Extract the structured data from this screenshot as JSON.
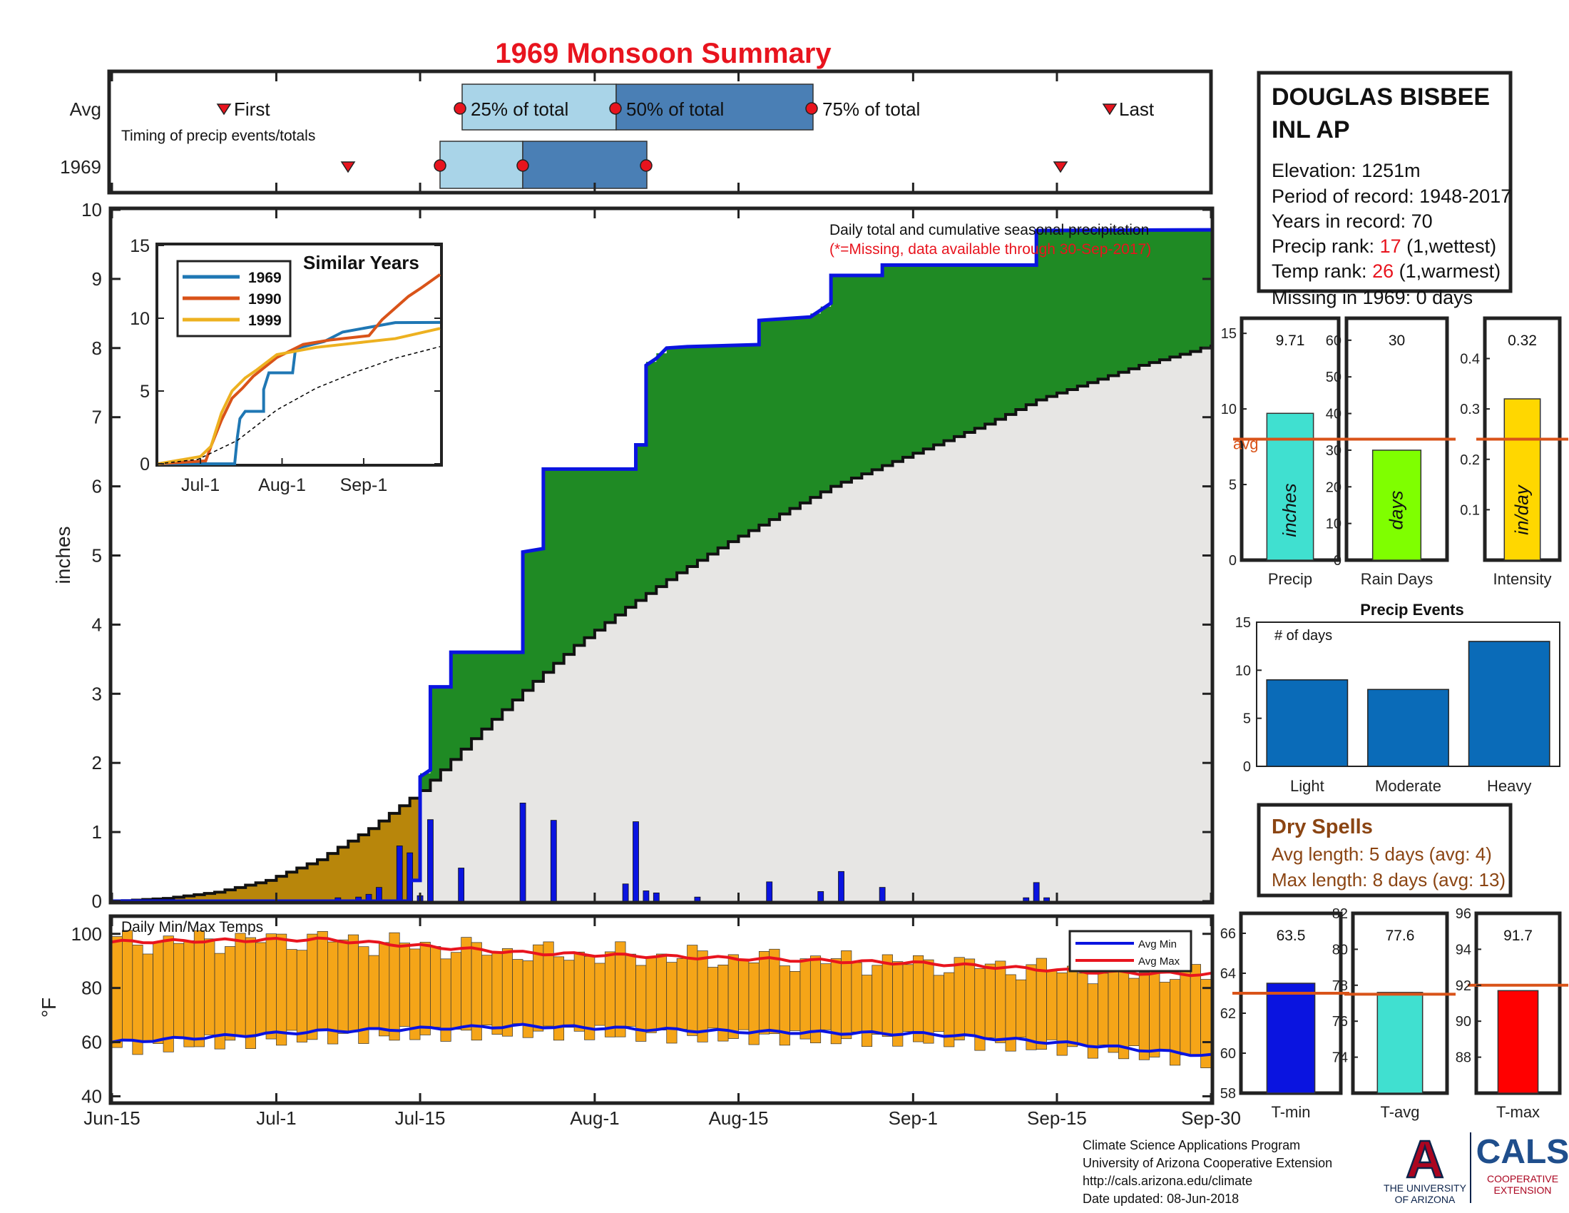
{
  "title": "1969 Monsoon Summary",
  "colors": {
    "title": "#e8141e",
    "cum_fill": "#1f8a24",
    "cum_line": "#0a14e0",
    "avg_fill": "#e7e6e4",
    "early_fill": "#b8860b",
    "daily_bar": "#0a14e0",
    "temp_bar": "#f5a518",
    "avg_max": "#e8141e",
    "avg_min": "#0a14e0",
    "box_light": "#a9d4e8",
    "box_dark": "#4a7fb5",
    "dry": "#8b4513"
  },
  "timing": {
    "row_avg": "Avg",
    "row_year": "1969",
    "caption": "Timing of precip events/totals",
    "first": "First",
    "last": "Last",
    "p25": "25% of total",
    "p50": "50% of total",
    "p75": "75% of total"
  },
  "station": {
    "name_line1": "DOUGLAS BISBEE",
    "name_line2": "INL AP",
    "elevation": "Elevation: 1251m",
    "period": "Period of record: 1948-2017",
    "years": "Years in record: 70",
    "precip_rank_label": "Precip rank: ",
    "precip_rank": "17",
    "precip_rank_note": " (1,wettest)",
    "temp_rank_label": "Temp rank: ",
    "temp_rank": "26",
    "temp_rank_note": " (1,warmest)",
    "missing": "Missing in 1969: 0 days"
  },
  "main_chart": {
    "note1": "Daily total and cumulative seasonal precipitation",
    "note2": "(*=Missing, data available through 30-Sep-2017)",
    "ylabel": "inches",
    "temp_title": "Daily Min/Max Temps",
    "temp_ylabel": "°F",
    "legend_min": "Avg Min",
    "legend_max": "Avg Max"
  },
  "inset": {
    "title": "Similar Years",
    "years": [
      "1969",
      "1990",
      "1999"
    ],
    "xticks": [
      "Jul-1",
      "Aug-1",
      "Sep-1"
    ],
    "yticks": [
      "0",
      "5",
      "10",
      "15"
    ]
  },
  "mini_bars": {
    "precip": {
      "value": "9.71",
      "unit": "inches",
      "label": "Precip",
      "avg_label": "avg"
    },
    "rain_days": {
      "value": "30",
      "unit": "days",
      "label": "Rain Days"
    },
    "intensity": {
      "value": "0.32",
      "unit": "in/day",
      "label": "Intensity"
    }
  },
  "events": {
    "title": "Precip Events",
    "ylabel": "# of days",
    "categories": [
      "Light",
      "Moderate",
      "Heavy"
    ],
    "values": [
      9,
      8,
      13
    ]
  },
  "dry_spells": {
    "title": "Dry Spells",
    "avg": "Avg length: 5 days (avg: 4)",
    "max": "Max length: 8 days (avg: 13)"
  },
  "temp_bars": {
    "tmin": {
      "value": "63.5",
      "label": "T-min"
    },
    "tavg": {
      "value": "77.6",
      "label": "T-avg"
    },
    "tmax": {
      "value": "91.7",
      "label": "T-max"
    }
  },
  "footer": {
    "line1": "Climate Science Applications Program",
    "line2": "University of Arizona Cooperative Extension",
    "line3": "http://cals.arizona.edu/climate",
    "line4": " Date updated: 08-Jun-2018",
    "ua1": "THE UNIVERSITY",
    "ua2": "OF ARIZONA",
    "cals": "CALS",
    "cals1": "COOPERATIVE",
    "cals2": "EXTENSION"
  },
  "chart_data": [
    {
      "type": "area",
      "name": "Daily total and cumulative seasonal precipitation",
      "xlabel": "",
      "ylabel": "inches",
      "xticks": [
        "Jun-15",
        "Jul-1",
        "Jul-15",
        "Aug-1",
        "Aug-15",
        "Sep-1",
        "Sep-15",
        "Sep-30"
      ],
      "xtick_days": [
        0,
        16,
        30,
        47,
        61,
        78,
        92,
        107
      ],
      "ylim": [
        0,
        10
      ],
      "yticks": [
        0,
        1,
        2,
        3,
        4,
        5,
        6,
        7,
        8,
        9,
        10
      ],
      "cumulative_1969": [
        [
          0,
          0
        ],
        [
          29,
          0
        ],
        [
          29,
          0.3
        ],
        [
          30,
          0.3
        ],
        [
          30,
          1.8
        ],
        [
          31,
          1.9
        ],
        [
          31,
          3.1
        ],
        [
          33,
          3.1
        ],
        [
          33,
          3.6
        ],
        [
          40,
          3.6
        ],
        [
          40,
          5.05
        ],
        [
          42,
          5.1
        ],
        [
          42,
          6.25
        ],
        [
          51,
          6.25
        ],
        [
          51,
          6.6
        ],
        [
          52,
          6.6
        ],
        [
          52,
          7.75
        ],
        [
          53,
          7.85
        ],
        [
          54,
          8.0
        ],
        [
          56,
          8.02
        ],
        [
          63,
          8.05
        ],
        [
          63,
          8.4
        ],
        [
          68,
          8.45
        ],
        [
          70,
          8.65
        ],
        [
          70,
          9.05
        ],
        [
          75,
          9.05
        ],
        [
          75,
          9.2
        ],
        [
          90,
          9.2
        ],
        [
          90,
          9.7
        ],
        [
          107,
          9.71
        ]
      ],
      "average_cumulative": [
        [
          0,
          0
        ],
        [
          5,
          0.04
        ],
        [
          10,
          0.13
        ],
        [
          15,
          0.3
        ],
        [
          20,
          0.6
        ],
        [
          25,
          1.05
        ],
        [
          30,
          1.6
        ],
        [
          35,
          2.35
        ],
        [
          40,
          3.05
        ],
        [
          45,
          3.7
        ],
        [
          50,
          4.25
        ],
        [
          55,
          4.75
        ],
        [
          60,
          5.2
        ],
        [
          65,
          5.6
        ],
        [
          70,
          6.0
        ],
        [
          75,
          6.3
        ],
        [
          80,
          6.6
        ],
        [
          85,
          6.9
        ],
        [
          90,
          7.25
        ],
        [
          95,
          7.5
        ],
        [
          100,
          7.75
        ],
        [
          105,
          7.95
        ],
        [
          107,
          8.05
        ]
      ],
      "daily_precip": [
        [
          22,
          0.05
        ],
        [
          24,
          0.06
        ],
        [
          25,
          0.1
        ],
        [
          26,
          0.2
        ],
        [
          28,
          0.8
        ],
        [
          29,
          0.7
        ],
        [
          30,
          0.08
        ],
        [
          31,
          1.18
        ],
        [
          34,
          0.48
        ],
        [
          40,
          1.42
        ],
        [
          43,
          1.17
        ],
        [
          50,
          0.25
        ],
        [
          51,
          1.15
        ],
        [
          52,
          0.15
        ],
        [
          53,
          0.12
        ],
        [
          57,
          0.06
        ],
        [
          64,
          0.28
        ],
        [
          69,
          0.14
        ],
        [
          71,
          0.43
        ],
        [
          75,
          0.2
        ],
        [
          89,
          0.05
        ],
        [
          90,
          0.27
        ],
        [
          91,
          0.05
        ]
      ]
    },
    {
      "type": "bar",
      "name": "Daily Min/Max Temps",
      "ylabel": "°F",
      "ylim": [
        38,
        106
      ],
      "yticks": [
        40,
        60,
        80,
        100
      ],
      "series": [
        {
          "name": "Avg Min"
        },
        {
          "name": "Avg Max"
        }
      ],
      "avg_max_points": [
        [
          0,
          97
        ],
        [
          20,
          98
        ],
        [
          40,
          93
        ],
        [
          60,
          91
        ],
        [
          80,
          89
        ],
        [
          95,
          86
        ],
        [
          107,
          85
        ]
      ],
      "avg_min_points": [
        [
          0,
          60
        ],
        [
          20,
          64
        ],
        [
          40,
          66
        ],
        [
          60,
          64
        ],
        [
          80,
          63
        ],
        [
          95,
          59
        ],
        [
          107,
          55
        ]
      ]
    },
    {
      "type": "line",
      "name": "Similar Years",
      "xlim": [
        0,
        107
      ],
      "ylim": [
        0,
        15
      ],
      "xticks": [
        "Jul-1",
        "Aug-1",
        "Sep-1"
      ],
      "yticks": [
        0,
        5,
        10,
        15
      ],
      "series": [
        {
          "name": "1969",
          "color": "#1f77b4",
          "points": [
            [
              0,
              0
            ],
            [
              29,
              0
            ],
            [
              30,
              1.8
            ],
            [
              31,
              3.1
            ],
            [
              33,
              3.6
            ],
            [
              40,
              3.6
            ],
            [
              40,
              5.1
            ],
            [
              42,
              6.25
            ],
            [
              51,
              6.25
            ],
            [
              52,
              7.75
            ],
            [
              54,
              8.0
            ],
            [
              63,
              8.4
            ],
            [
              70,
              9.05
            ],
            [
              90,
              9.7
            ],
            [
              107,
              9.71
            ]
          ]
        },
        {
          "name": "1990",
          "color": "#d95319",
          "points": [
            [
              0,
              0
            ],
            [
              18,
              0.2
            ],
            [
              20,
              1.2
            ],
            [
              24,
              3.0
            ],
            [
              28,
              4.5
            ],
            [
              32,
              5.2
            ],
            [
              36,
              6.0
            ],
            [
              45,
              7.3
            ],
            [
              55,
              8.2
            ],
            [
              65,
              8.5
            ],
            [
              80,
              8.8
            ],
            [
              85,
              9.9
            ],
            [
              95,
              11.5
            ],
            [
              100,
              12.1
            ],
            [
              107,
              13.0
            ]
          ]
        },
        {
          "name": "1999",
          "color": "#edb120",
          "points": [
            [
              0,
              0
            ],
            [
              16,
              0.5
            ],
            [
              20,
              1.2
            ],
            [
              24,
              3.5
            ],
            [
              28,
              5.0
            ],
            [
              33,
              5.9
            ],
            [
              37,
              6.4
            ],
            [
              45,
              7.5
            ],
            [
              60,
              8.0
            ],
            [
              75,
              8.3
            ],
            [
              90,
              8.6
            ],
            [
              107,
              9.3
            ]
          ]
        },
        {
          "name": "Average",
          "color": "#000000",
          "points": [
            [
              0,
              0
            ],
            [
              15,
              0.3
            ],
            [
              30,
              1.6
            ],
            [
              45,
              3.7
            ],
            [
              60,
              5.2
            ],
            [
              75,
              6.3
            ],
            [
              90,
              7.25
            ],
            [
              107,
              8.05
            ]
          ]
        }
      ]
    },
    {
      "type": "bar",
      "name": "Precip",
      "categories": [
        "Precip"
      ],
      "values": [
        9.71
      ],
      "avg": 8.0,
      "ylim": [
        0,
        16
      ],
      "yticks": [
        0,
        5,
        10,
        15
      ]
    },
    {
      "type": "bar",
      "name": "Rain Days",
      "categories": [
        "Rain Days"
      ],
      "values": [
        30
      ],
      "avg": 33,
      "ylim": [
        0,
        66
      ],
      "yticks": [
        0,
        10,
        20,
        30,
        40,
        50,
        60
      ]
    },
    {
      "type": "bar",
      "name": "Intensity",
      "categories": [
        "Intensity"
      ],
      "values": [
        0.32
      ],
      "avg": 0.24,
      "ylim": [
        0,
        0.48
      ],
      "yticks": [
        0.1,
        0.2,
        0.3,
        0.4
      ]
    },
    {
      "type": "bar",
      "name": "Precip Events",
      "ylabel": "# of days",
      "categories": [
        "Light",
        "Moderate",
        "Heavy"
      ],
      "values": [
        9,
        8,
        13
      ],
      "ylim": [
        0,
        15
      ],
      "yticks": [
        0,
        5,
        10,
        15
      ]
    },
    {
      "type": "bar",
      "name": "T-min",
      "categories": [
        "T-min"
      ],
      "values": [
        63.5
      ],
      "avg": 63.0,
      "ylim": [
        58,
        67
      ],
      "yticks": [
        58,
        60,
        62,
        64,
        66
      ]
    },
    {
      "type": "bar",
      "name": "T-avg",
      "categories": [
        "T-avg"
      ],
      "values": [
        77.6
      ],
      "avg": 77.5,
      "ylim": [
        72,
        82
      ],
      "yticks": [
        74,
        76,
        78,
        80,
        82
      ]
    },
    {
      "type": "bar",
      "name": "T-max",
      "categories": [
        "T-max"
      ],
      "values": [
        91.7
      ],
      "avg": 92.0,
      "ylim": [
        86,
        96
      ],
      "yticks": [
        88,
        90,
        92,
        94,
        96
      ]
    }
  ]
}
